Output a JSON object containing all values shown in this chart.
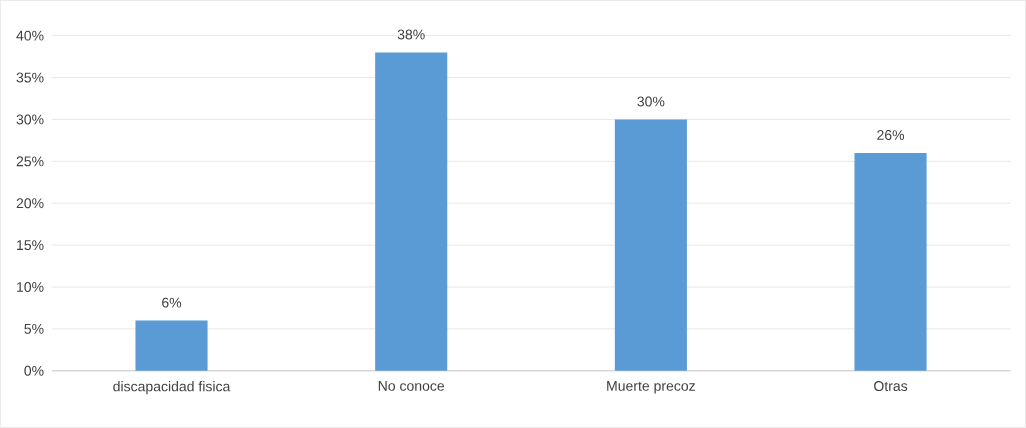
{
  "chart_data": {
    "type": "bar",
    "categories": [
      "discapacidad fisica",
      "No conoce",
      "Muerte precoz",
      "Otras"
    ],
    "values": [
      6,
      38,
      30,
      26
    ],
    "value_labels": [
      "6%",
      "38%",
      "30%",
      "26%"
    ],
    "color": "#5b9bd5",
    "ylim": [
      0,
      40
    ],
    "yticks": [
      {
        "value": 0,
        "label": "0%"
      },
      {
        "value": 5,
        "label": "5%"
      },
      {
        "value": 10,
        "label": "10%"
      },
      {
        "value": 15,
        "label": "15%"
      },
      {
        "value": 20,
        "label": "20%"
      },
      {
        "value": 25,
        "label": "25%"
      },
      {
        "value": 30,
        "label": "30%"
      },
      {
        "value": 35,
        "label": "35%"
      },
      {
        "value": 40,
        "label": "40%"
      }
    ],
    "grid": "y"
  }
}
